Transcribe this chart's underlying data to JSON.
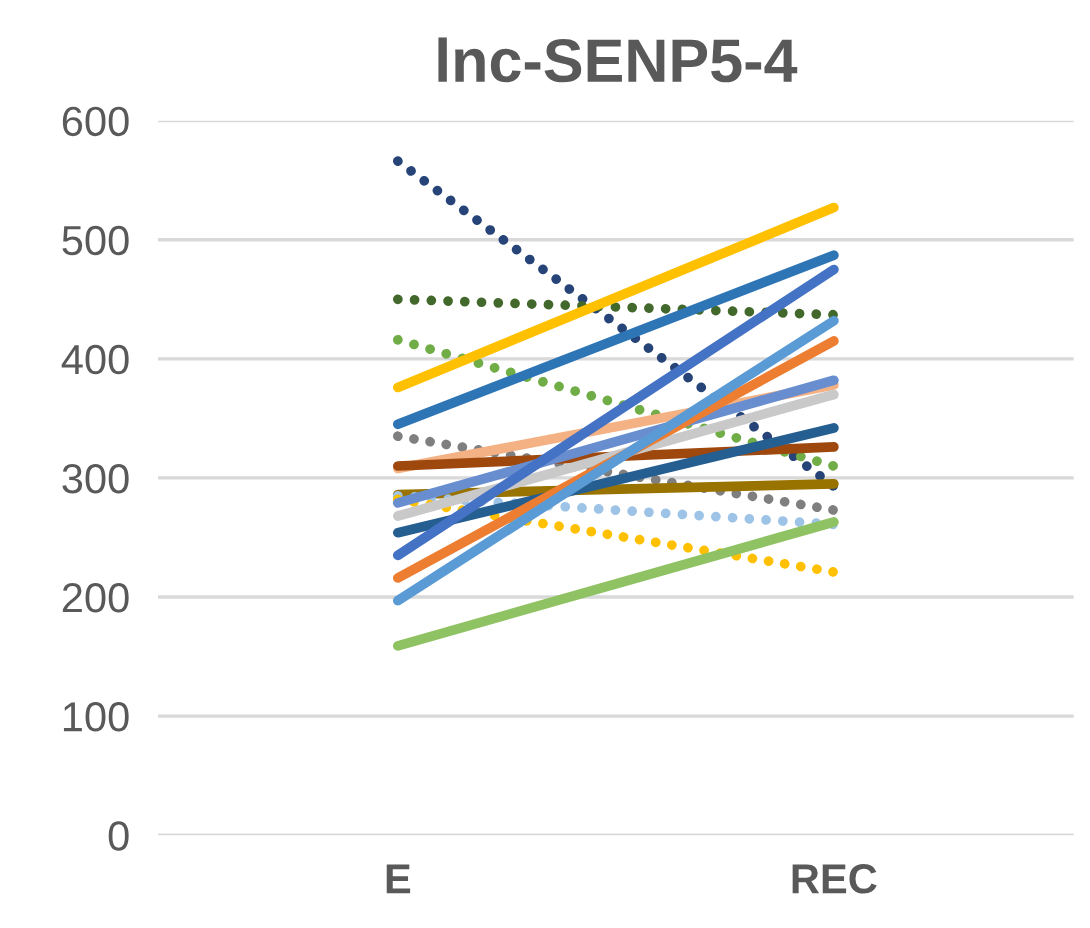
{
  "chart_data": {
    "type": "line",
    "title": "lnc-SENP5-4",
    "categories": [
      "E",
      "REC"
    ],
    "ylim": [
      0,
      600
    ],
    "yticks": [
      0,
      100,
      200,
      300,
      400,
      500,
      600
    ],
    "grid": "y",
    "legend": false,
    "marker": "none",
    "series": [
      {
        "color": "#264478",
        "values": [
          566,
          293
        ],
        "line_style": "dotted"
      },
      {
        "color": "#43682b",
        "values": [
          450,
          437
        ],
        "line_style": "dotted"
      },
      {
        "color": "#70ad47",
        "values": [
          416,
          310
        ],
        "line_style": "dotted"
      },
      {
        "color": "#ffc000",
        "values": [
          376,
          527
        ],
        "line_style": "solid"
      },
      {
        "color": "#2e75b6",
        "values": [
          345,
          487
        ],
        "line_style": "solid"
      },
      {
        "color": "#7f7f7f",
        "values": [
          335,
          273
        ],
        "line_style": "dotted"
      },
      {
        "color": "#f4b183",
        "values": [
          308,
          378
        ],
        "line_style": "solid"
      },
      {
        "color": "#9e480e",
        "values": [
          310,
          326
        ],
        "line_style": "solid"
      },
      {
        "color": "#997300",
        "values": [
          286,
          295
        ],
        "line_style": "solid"
      },
      {
        "color": "#9dc3e6",
        "values": [
          285,
          261
        ],
        "line_style": "dotted"
      },
      {
        "color": "#ffc000",
        "values": [
          282,
          221
        ],
        "line_style": "dotted"
      },
      {
        "color": "#c9c9c9",
        "values": [
          268,
          370
        ],
        "line_style": "solid"
      },
      {
        "color": "#698ed0",
        "values": [
          279,
          382
        ],
        "line_style": "solid"
      },
      {
        "color": "#255e91",
        "values": [
          254,
          342
        ],
        "line_style": "solid"
      },
      {
        "color": "#4472c4",
        "values": [
          235,
          475
        ],
        "line_style": "solid"
      },
      {
        "color": "#ed7d31",
        "values": [
          216,
          415
        ],
        "line_style": "solid"
      },
      {
        "color": "#5b9bd5",
        "values": [
          197,
          432
        ],
        "line_style": "solid"
      },
      {
        "color": "#8fc262",
        "values": [
          159,
          263
        ],
        "line_style": "solid"
      }
    ]
  }
}
